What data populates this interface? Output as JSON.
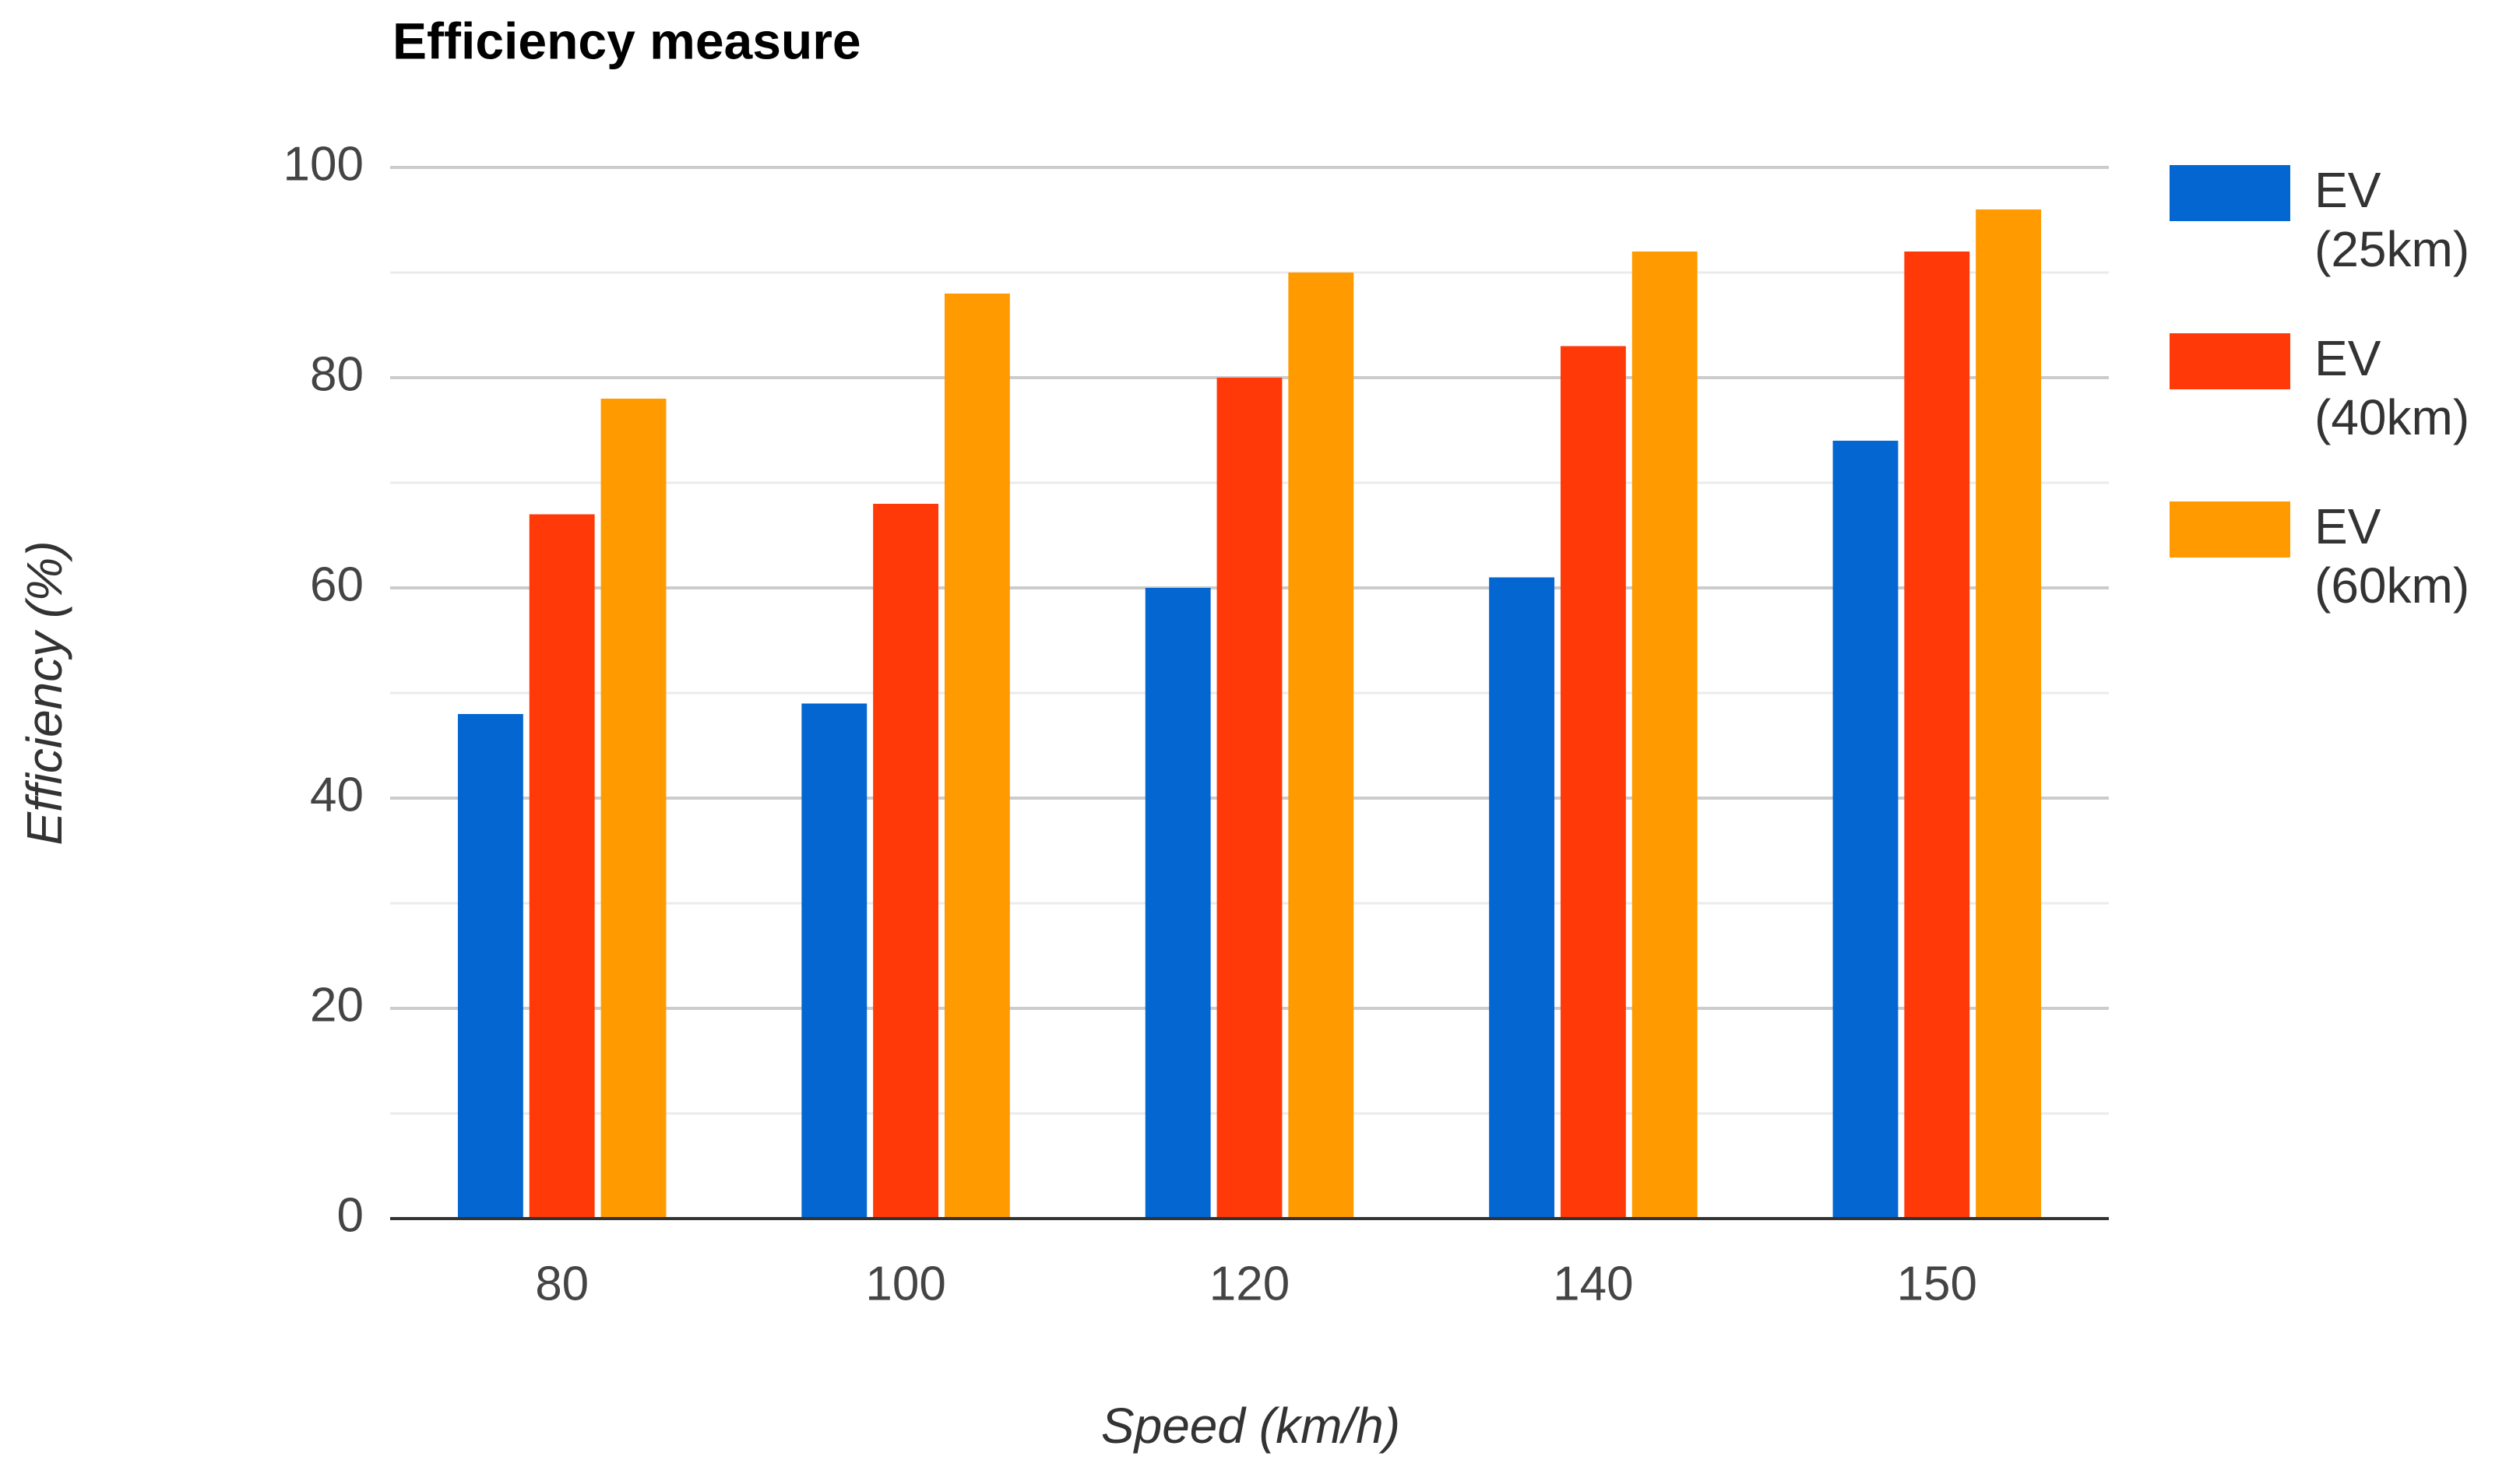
{
  "chart_data": {
    "type": "bar",
    "title": "Efficiency measure",
    "x_label": "Speed (km/h)",
    "y_label": "Efficiency (%)",
    "categories": [
      "80",
      "100",
      "120",
      "140",
      "150"
    ],
    "series": [
      {
        "name": "EV (25km)",
        "color": "#0366d1",
        "values": [
          48,
          49,
          60,
          61,
          74
        ]
      },
      {
        "name": "EV (40km)",
        "color": "#ff3a08",
        "values": [
          67,
          68,
          80,
          83,
          92
        ]
      },
      {
        "name": "EV (60km)",
        "color": "#ff9a00",
        "values": [
          78,
          88,
          90,
          92,
          96
        ]
      }
    ],
    "ylim": [
      0,
      100
    ],
    "yticks": [
      0,
      20,
      40,
      60,
      80,
      100
    ],
    "minor_yticks": [
      10,
      30,
      50,
      70,
      90
    ],
    "grid": true,
    "legend": "right"
  }
}
